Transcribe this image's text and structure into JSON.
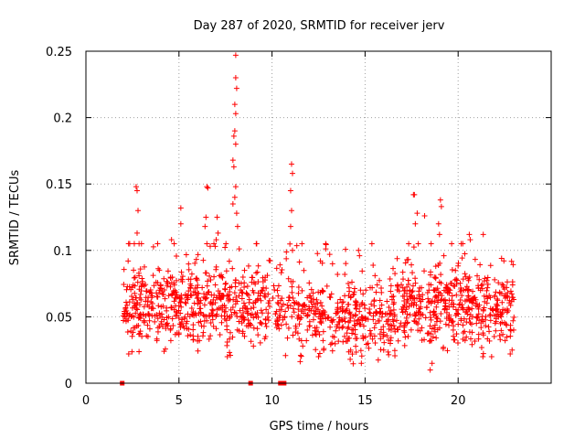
{
  "chart_data": {
    "type": "scatter",
    "title": "Day 287 of 2020, SRMTID for receiver jerv",
    "xlabel": "GPS time / hours",
    "ylabel": "SRMTID / TECUs",
    "xlim": [
      0,
      25
    ],
    "ylim": [
      0,
      0.25
    ],
    "xticks": [
      0,
      5,
      10,
      15,
      20
    ],
    "yticks": [
      0,
      0.05,
      0.1,
      0.15,
      0.2,
      0.25
    ],
    "xtick_labels": [
      "0",
      "5",
      "10",
      "15",
      "20"
    ],
    "ytick_labels": [
      "0",
      "0.05",
      "0.1",
      "0.15",
      "0.2",
      "0.25"
    ],
    "grid": true,
    "marker": "plus",
    "color": "#ff0000",
    "baseline_markers": {
      "marker": "square",
      "x": [
        1.95,
        8.85,
        10.45,
        10.55,
        10.65
      ],
      "y": [
        0,
        0,
        0,
        0,
        0
      ]
    },
    "series": [
      {
        "name": "SRMTID",
        "x_range": [
          2.0,
          23.0
        ],
        "typical_range": [
          0.025,
          0.095
        ],
        "points": [
          [
            2.7,
            0.148
          ],
          [
            2.75,
            0.145
          ],
          [
            2.8,
            0.13
          ],
          [
            2.75,
            0.113
          ],
          [
            2.6,
            0.105
          ],
          [
            5.1,
            0.132
          ],
          [
            5.1,
            0.12
          ],
          [
            4.6,
            0.108
          ],
          [
            6.5,
            0.148
          ],
          [
            6.55,
            0.147
          ],
          [
            6.45,
            0.125
          ],
          [
            6.4,
            0.118
          ],
          [
            7.05,
            0.125
          ],
          [
            7.1,
            0.113
          ],
          [
            7.0,
            0.108
          ],
          [
            8.05,
            0.247
          ],
          [
            8.05,
            0.23
          ],
          [
            8.1,
            0.222
          ],
          [
            8.0,
            0.21
          ],
          [
            8.05,
            0.203
          ],
          [
            8.0,
            0.19
          ],
          [
            7.95,
            0.186
          ],
          [
            8.05,
            0.18
          ],
          [
            7.9,
            0.168
          ],
          [
            7.95,
            0.163
          ],
          [
            8.05,
            0.148
          ],
          [
            8.0,
            0.14
          ],
          [
            7.9,
            0.135
          ],
          [
            8.1,
            0.128
          ],
          [
            8.15,
            0.118
          ],
          [
            11.05,
            0.165
          ],
          [
            11.1,
            0.158
          ],
          [
            11.0,
            0.145
          ],
          [
            11.05,
            0.13
          ],
          [
            11.0,
            0.118
          ],
          [
            11.1,
            0.1
          ],
          [
            17.6,
            0.142
          ],
          [
            17.65,
            0.142
          ],
          [
            17.8,
            0.128
          ],
          [
            17.7,
            0.12
          ],
          [
            18.2,
            0.126
          ],
          [
            19.05,
            0.138
          ],
          [
            19.1,
            0.133
          ],
          [
            18.95,
            0.12
          ],
          [
            19.0,
            0.112
          ],
          [
            20.6,
            0.112
          ],
          [
            20.65,
            0.108
          ],
          [
            21.35,
            0.112
          ],
          [
            14.65,
            0.1
          ],
          [
            14.7,
            0.096
          ],
          [
            13.1,
            0.097
          ],
          [
            12.6,
            0.092
          ],
          [
            2.3,
            0.022
          ],
          [
            4.2,
            0.024
          ],
          [
            7.6,
            0.02
          ],
          [
            9.0,
            0.028
          ],
          [
            12.5,
            0.02
          ],
          [
            14.2,
            0.018
          ],
          [
            14.8,
            0.015
          ],
          [
            16.0,
            0.025
          ],
          [
            18.5,
            0.01
          ],
          [
            18.6,
            0.015
          ],
          [
            21.8,
            0.02
          ],
          [
            22.8,
            0.022
          ],
          [
            22.9,
            0.025
          ]
        ]
      }
    ]
  }
}
